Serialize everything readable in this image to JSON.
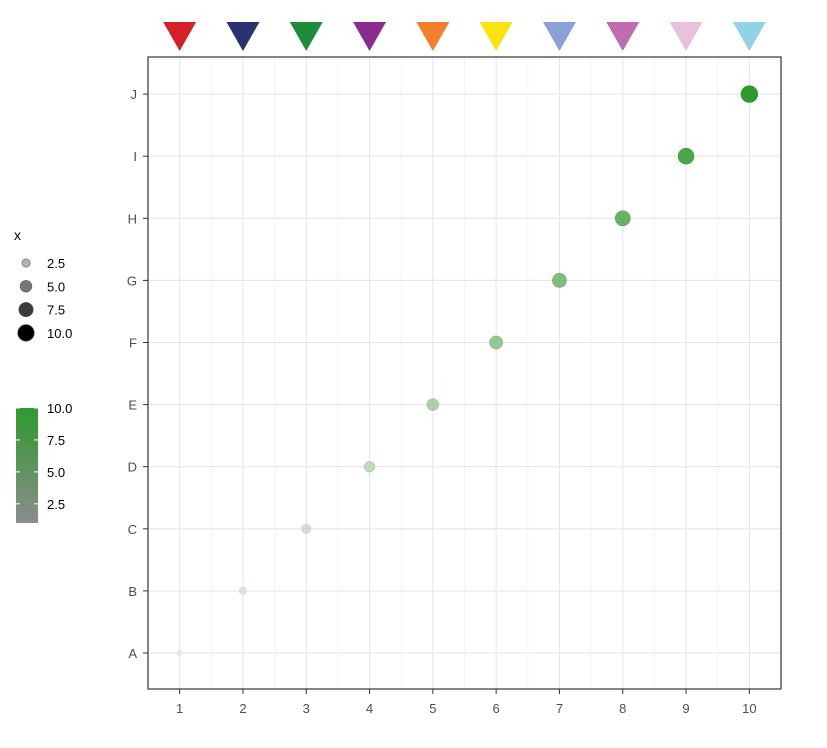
{
  "chart_data": {
    "type": "scatter",
    "x": [
      1,
      2,
      3,
      4,
      5,
      6,
      7,
      8,
      9,
      10
    ],
    "y": [
      "A",
      "B",
      "C",
      "D",
      "E",
      "F",
      "G",
      "H",
      "I",
      "J"
    ],
    "size_values": [
      1,
      2,
      3,
      4,
      5,
      6,
      7,
      8,
      9,
      10
    ],
    "color_values": [
      1,
      2,
      3,
      4,
      5,
      6,
      7,
      8,
      9,
      10
    ],
    "x_ticks": [
      "1",
      "2",
      "3",
      "4",
      "5",
      "6",
      "7",
      "8",
      "9",
      "10"
    ],
    "y_categories": [
      "A",
      "B",
      "C",
      "D",
      "E",
      "F",
      "G",
      "H",
      "I",
      "J"
    ],
    "xlim": [
      0.5,
      10.5
    ],
    "grid": true,
    "size_legend": {
      "title": "x",
      "entries": [
        "2.5",
        "5.0",
        "7.5",
        "10.0"
      ],
      "entry_values": [
        2.5,
        5.0,
        7.5,
        10.0
      ],
      "placement": "left"
    },
    "color_legend": {
      "title": "",
      "ticks": [
        "2.5",
        "5.0",
        "7.5",
        "10.0"
      ],
      "tick_values": [
        2.5,
        5.0,
        7.5,
        10.0
      ],
      "range": [
        1,
        10
      ],
      "low_color": "#8c8c8c",
      "high_color": "#2e9a2e",
      "placement": "left"
    },
    "top_markers": {
      "shape": "triangle-down",
      "colors": [
        "#d62027",
        "#2b3272",
        "#1f8c3b",
        "#8b2a8f",
        "#f47f2a",
        "#fbe30f",
        "#8ba0d4",
        "#c06cb1",
        "#e8c1dc",
        "#8fd3e4"
      ]
    },
    "point_color_low": "#d9d9d9",
    "point_color_high": "#2e9a2e"
  }
}
